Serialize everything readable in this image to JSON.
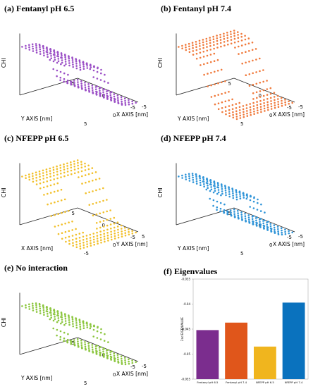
{
  "panels": [
    {
      "id": "a",
      "title": "(a) Fentanyl pH 6.5",
      "color": "#9b4fc6",
      "shape": "sigmoid-x",
      "zlabel": "CHI",
      "xaxis_label": "X AXIS [nm]",
      "yaxis_label": "Y AXIS [nm]",
      "left_axis_ticks": [
        "5",
        "0",
        "-5"
      ],
      "right_axis_ticks": [
        "-5",
        "0",
        "5"
      ]
    },
    {
      "id": "b",
      "title": "(b) Fentanyl pH 7.4",
      "color": "#f07a3c",
      "shape": "sigmoid-y",
      "zlabel": "CHI",
      "xaxis_label": "X AXIS [nm]",
      "yaxis_label": "Y AXIS [nm]",
      "left_axis_ticks": [
        "5",
        "0",
        "-5"
      ],
      "right_axis_ticks": [
        "-5",
        "0",
        "5"
      ]
    },
    {
      "id": "c",
      "title": "(c) NFEPP pH 6.5",
      "color": "#f2c02b",
      "shape": "sigmoid-y",
      "zlabel": "CHI",
      "xaxis_label": "Y AXIS [nm]",
      "yaxis_label": "X AXIS [nm]",
      "left_axis_ticks": [
        "5",
        "0",
        "-5"
      ],
      "right_axis_ticks": [
        "5",
        "0",
        "-5"
      ]
    },
    {
      "id": "d",
      "title": "(d) NFEPP pH 7.4",
      "color": "#2f94d8",
      "shape": "sigmoid-x",
      "zlabel": "CHI",
      "xaxis_label": "X AXIS [nm]",
      "yaxis_label": "Y AXIS [nm]",
      "left_axis_ticks": [
        "5",
        "0",
        "-5"
      ],
      "right_axis_ticks": [
        "-5",
        "0",
        "5"
      ]
    },
    {
      "id": "e",
      "title": "(e) No interaction",
      "color": "#8cc63f",
      "shape": "sigmoid-x",
      "zlabel": "CHI",
      "xaxis_label": "X AXIS [nm]",
      "yaxis_label": "Y AXIS [nm]",
      "left_axis_ticks": [
        "5",
        "0",
        "-5"
      ],
      "right_axis_ticks": [
        "-5",
        "0",
        "5"
      ]
    }
  ],
  "eigen": {
    "title": "(f) Eigenvalues",
    "ylabel": "2nd EIGENVALUE",
    "yticks": [
      "-0.035",
      "-0.04",
      "-0.045",
      "-0.05",
      "-0.055"
    ]
  },
  "chart_data": {
    "type": "bar",
    "title": "(f) Eigenvalues",
    "ylabel": "2nd EIGENVALUE",
    "ylim": [
      -0.055,
      -0.035
    ],
    "y_inverted": true,
    "categories": [
      "Fentanyl pH 6.5",
      "Fentanyl pH 7.4",
      "NFEPP pH 6.5",
      "NFEPP pH 7.4"
    ],
    "values": [
      -0.0448,
      -0.0463,
      -0.0415,
      -0.0503
    ],
    "colors": [
      "#7b2d8e",
      "#e0561b",
      "#f0b51e",
      "#0a72be"
    ]
  }
}
